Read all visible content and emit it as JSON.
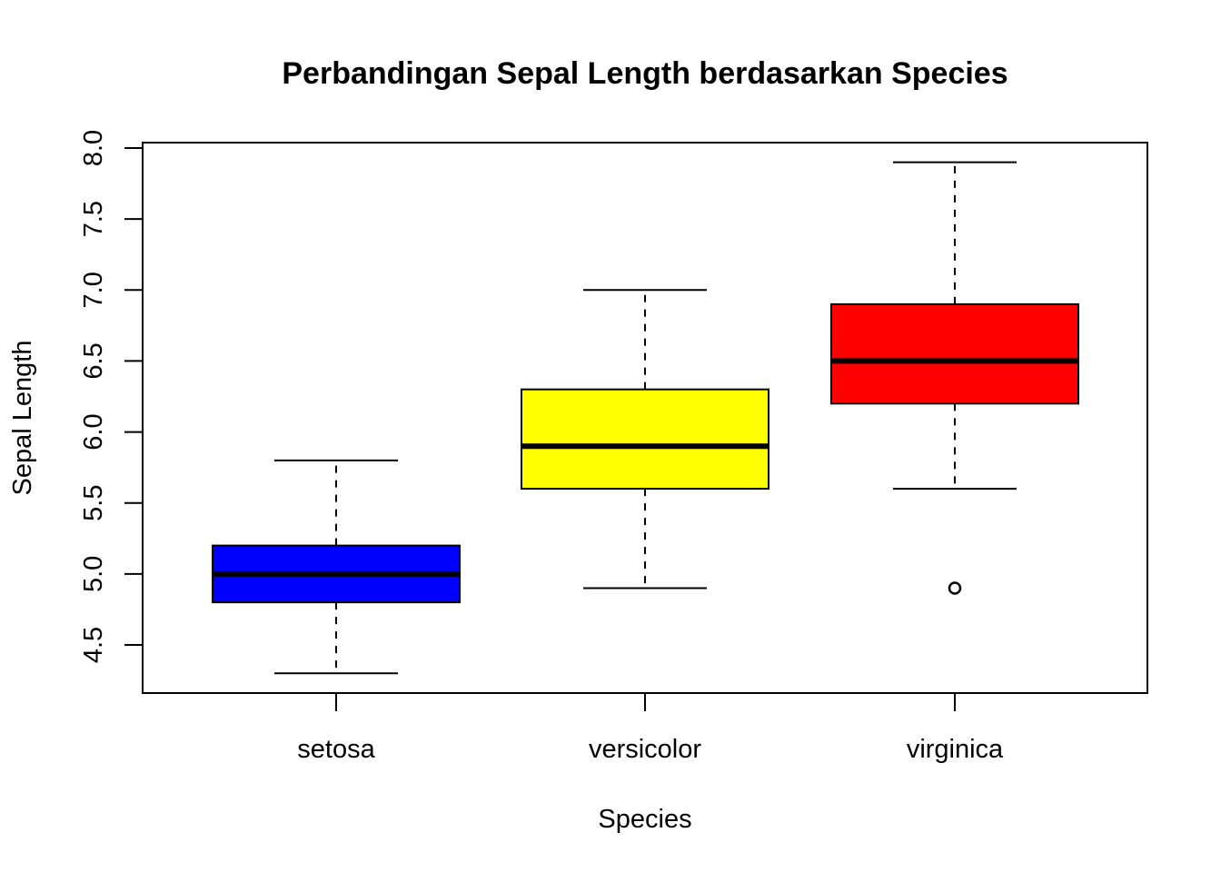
{
  "chart_data": {
    "type": "box",
    "title": "Perbandingan Sepal Length berdasarkan Species",
    "xlabel": "Species",
    "ylabel": "Sepal Length",
    "ylim": [
      4.3,
      7.9
    ],
    "yticks": [
      "4.5",
      "5.0",
      "5.5",
      "6.0",
      "6.5",
      "7.0",
      "7.5",
      "8.0"
    ],
    "categories": [
      "setosa",
      "versicolor",
      "virginica"
    ],
    "boxes": [
      {
        "category": "setosa",
        "color": "#0000FF",
        "whisker_low": 4.3,
        "q1": 4.8,
        "median": 5.0,
        "q3": 5.2,
        "whisker_high": 5.8,
        "outliers": []
      },
      {
        "category": "versicolor",
        "color": "#FFFF00",
        "whisker_low": 4.9,
        "q1": 5.6,
        "median": 5.9,
        "q3": 6.3,
        "whisker_high": 7.0,
        "outliers": []
      },
      {
        "category": "virginica",
        "color": "#FF0000",
        "whisker_low": 5.6,
        "q1": 6.2,
        "median": 6.5,
        "q3": 6.9,
        "whisker_high": 7.9,
        "outliers": [
          4.9
        ]
      }
    ],
    "grid": false,
    "legend": "none"
  }
}
